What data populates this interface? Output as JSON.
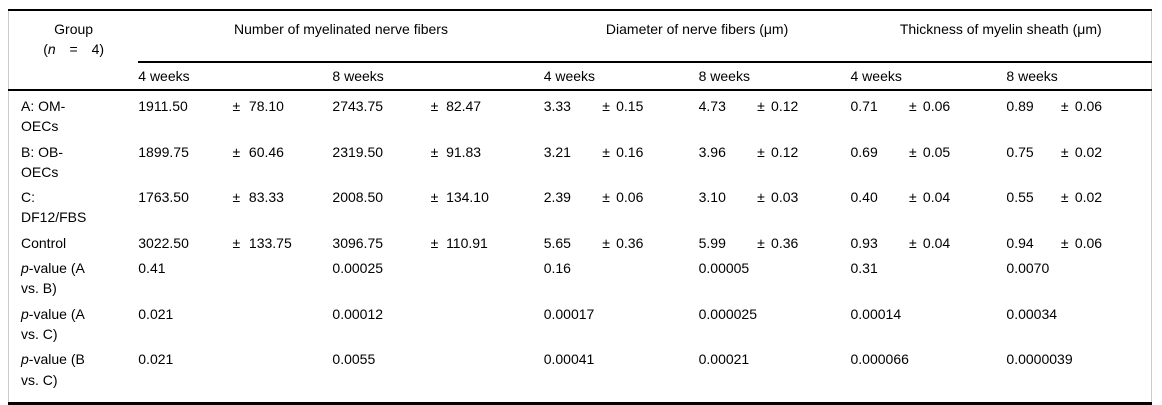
{
  "table": {
    "pm": "±",
    "header": {
      "group": {
        "line1": "Group",
        "open": "(",
        "n": "n",
        "rest": " = 4)"
      },
      "col_groups": [
        {
          "label": "Number of myelinated nerve fibers",
          "sub": [
            "4 weeks",
            "8 weeks"
          ]
        },
        {
          "label": "Diameter of nerve fibers (μm)",
          "sub": [
            "4 weeks",
            "8 weeks"
          ]
        },
        {
          "label": "Thickness of myelin sheath (μm)",
          "sub": [
            "4 weeks",
            "8 weeks"
          ]
        }
      ]
    },
    "rows": [
      {
        "label": "A: OM-\nOECs",
        "cells": [
          [
            "1911.50",
            "78.10"
          ],
          [
            "2743.75",
            "82.47"
          ],
          [
            "3.33",
            "0.15"
          ],
          [
            "4.73",
            "0.12"
          ],
          [
            "0.71",
            "0.06"
          ],
          [
            "0.89",
            "0.06"
          ]
        ]
      },
      {
        "label": "B: OB-\nOECs",
        "cells": [
          [
            "1899.75",
            "60.46"
          ],
          [
            "2319.50",
            "91.83"
          ],
          [
            "3.21",
            "0.16"
          ],
          [
            "3.96",
            "0.12"
          ],
          [
            "0.69",
            "0.05"
          ],
          [
            "0.75",
            "0.02"
          ]
        ]
      },
      {
        "label": "C:\nDF12/FBS",
        "cells": [
          [
            "1763.50",
            "83.33"
          ],
          [
            "2008.50",
            "134.10"
          ],
          [
            "2.39",
            "0.06"
          ],
          [
            "3.10",
            "0.03"
          ],
          [
            "0.40",
            "0.04"
          ],
          [
            "0.55",
            "0.02"
          ]
        ]
      },
      {
        "label": "Control",
        "cells": [
          [
            "3022.50",
            "133.75"
          ],
          [
            "3096.75",
            "110.91"
          ],
          [
            "5.65",
            "0.36"
          ],
          [
            "5.99",
            "0.36"
          ],
          [
            "0.93",
            "0.04"
          ],
          [
            "0.94",
            "0.06"
          ]
        ]
      },
      {
        "label_italic": "p",
        "label": "-value (A\nvs. B)",
        "cells": [
          [
            "0.41"
          ],
          [
            "0.00025"
          ],
          [
            "0.16"
          ],
          [
            "0.00005"
          ],
          [
            "0.31"
          ],
          [
            "0.0070"
          ]
        ]
      },
      {
        "label_italic": "p",
        "label": "-value (A\nvs. C)",
        "cells": [
          [
            "0.021"
          ],
          [
            "0.00012"
          ],
          [
            "0.00017"
          ],
          [
            "0.000025"
          ],
          [
            "0.00014"
          ],
          [
            "0.00034"
          ]
        ]
      },
      {
        "label_italic": "p",
        "label": "-value (B\nvs. C)",
        "cells": [
          [
            "0.021"
          ],
          [
            "0.0055"
          ],
          [
            "0.00041"
          ],
          [
            "0.00021"
          ],
          [
            "0.000066"
          ],
          [
            "0.0000039"
          ]
        ]
      }
    ]
  }
}
